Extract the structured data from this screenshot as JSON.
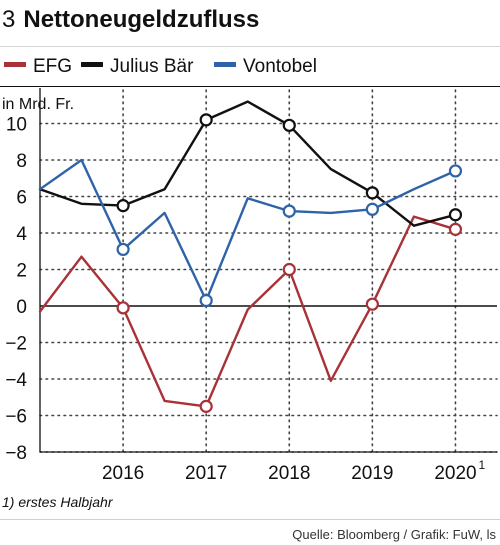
{
  "header": {
    "number": "3",
    "title": "Nettoneugeldzufluss"
  },
  "legend": [
    {
      "label": "EFG",
      "color": "#a83238"
    },
    {
      "label": "Julius Bär",
      "color": "#111111"
    },
    {
      "label": "Vontobel",
      "color": "#2f63a8"
    }
  ],
  "footnote": "1) erstes Halbjahr",
  "source": "Quelle: Bloomberg / Grafik: FuW, ls",
  "chart_data": {
    "type": "line",
    "ylabel": "in Mrd. Fr.",
    "ylim": [
      -8,
      11
    ],
    "yticks": [
      -8,
      -6,
      -4,
      -2,
      0,
      2,
      4,
      6,
      8,
      10
    ],
    "yticklabels": [
      "−8",
      "−6",
      "−4",
      "−2",
      "0",
      "2",
      "4",
      "6",
      "8",
      "10"
    ],
    "xlim": [
      2015,
      2020.5
    ],
    "xticks": [
      2016,
      2017,
      2018,
      2019,
      2020
    ],
    "xticklabels": [
      "2016",
      "2017",
      "2018",
      "2019",
      "2020"
    ],
    "xtick_superscript": {
      "2020": "1"
    },
    "grid": "dotted",
    "series": [
      {
        "name": "EFG",
        "color": "#a83238",
        "x": [
          2015,
          2015.5,
          2016,
          2016.5,
          2017,
          2017.5,
          2018,
          2018.5,
          2019,
          2019.5,
          2020
        ],
        "y": [
          -0.3,
          2.7,
          -0.1,
          -5.2,
          -5.5,
          -0.2,
          2.0,
          -4.1,
          0.1,
          4.9,
          4.2
        ],
        "markers_at": [
          2016,
          2017,
          2018,
          2019,
          2020
        ]
      },
      {
        "name": "Julius Bär",
        "color": "#111111",
        "x": [
          2015,
          2015.5,
          2016,
          2016.5,
          2017,
          2017.5,
          2018,
          2018.5,
          2019,
          2019.5,
          2020
        ],
        "y": [
          6.4,
          5.6,
          5.5,
          6.4,
          10.2,
          11.2,
          9.9,
          7.5,
          6.2,
          4.4,
          5.0
        ],
        "markers_at": [
          2016,
          2017,
          2018,
          2019,
          2020
        ]
      },
      {
        "name": "Vontobel",
        "color": "#2f63a8",
        "x": [
          2015,
          2015.5,
          2016,
          2016.5,
          2017,
          2017.5,
          2018,
          2018.5,
          2019,
          2019.5,
          2020
        ],
        "y": [
          6.4,
          8.0,
          3.1,
          5.1,
          0.3,
          5.9,
          5.2,
          5.1,
          5.3,
          6.4,
          7.4
        ],
        "markers_at": [
          2016,
          2017,
          2018,
          2019,
          2020
        ]
      }
    ]
  }
}
